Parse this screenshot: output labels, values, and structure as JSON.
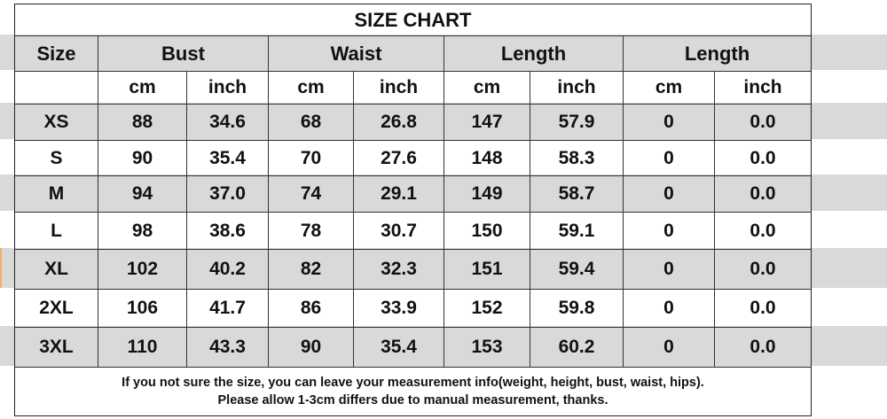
{
  "title": "SIZE CHART",
  "header": [
    "Size",
    "Bust",
    "Waist",
    "Length",
    "Length"
  ],
  "subheader": [
    "",
    "cm",
    "inch",
    "cm",
    "inch",
    "cm",
    "inch",
    "cm",
    "inch"
  ],
  "rows": [
    [
      "XS",
      "88",
      "34.6",
      "68",
      "26.8",
      "147",
      "57.9",
      "0",
      "0.0"
    ],
    [
      "S",
      "90",
      "35.4",
      "70",
      "27.6",
      "148",
      "58.3",
      "0",
      "0.0"
    ],
    [
      "M",
      "94",
      "37.0",
      "74",
      "29.1",
      "149",
      "58.7",
      "0",
      "0.0"
    ],
    [
      "L",
      "98",
      "38.6",
      "78",
      "30.7",
      "150",
      "59.1",
      "0",
      "0.0"
    ],
    [
      "XL",
      "102",
      "40.2",
      "82",
      "32.3",
      "151",
      "59.4",
      "0",
      "0.0"
    ],
    [
      "2XL",
      "106",
      "41.7",
      "86",
      "33.9",
      "152",
      "59.8",
      "0",
      "0.0"
    ],
    [
      "3XL",
      "110",
      "43.3",
      "90",
      "35.4",
      "153",
      "60.2",
      "0",
      "0.0"
    ]
  ],
  "footer": [
    "If you not sure the size, you can leave your measurement info(weight, height, bust, waist, hips).",
    "Please allow 1-3cm differs due to manual measurement, thanks."
  ],
  "colors": {
    "stripe": "#d9d9d9",
    "border": "#333333"
  }
}
